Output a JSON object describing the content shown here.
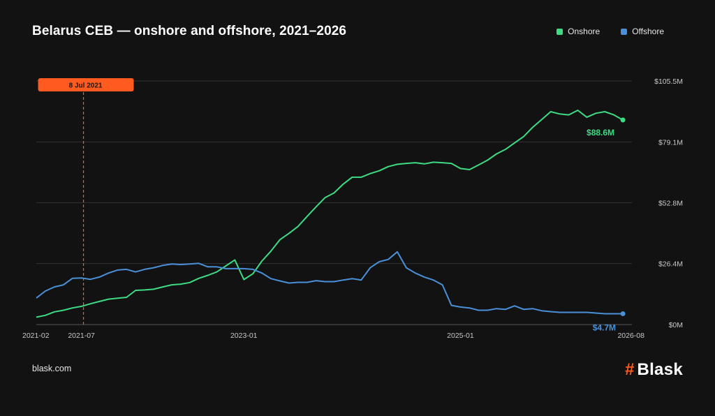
{
  "header": {
    "title": "Belarus CEB — onshore and offshore, 2021–2026"
  },
  "legend": [
    {
      "label": "Onshore",
      "color": "#3ddc84"
    },
    {
      "label": "Offshore",
      "color": "#4a90d9"
    }
  ],
  "footer": {
    "source": "blask.com",
    "brand_mark": "#",
    "brand_name": "Blask"
  },
  "colors": {
    "accent": "#ff5a1f",
    "onshore": "#3ddc84",
    "offshore": "#4a90d9",
    "grid": "#3a3a3a"
  },
  "chart_data": {
    "type": "line",
    "x_axis": {
      "ticks": [
        "2021-02",
        "2021-07",
        "2023-01",
        "2025-01",
        "2026-08"
      ],
      "range": [
        "2021-02",
        "2026-08"
      ]
    },
    "y_axis": {
      "ticks": [
        "$0M",
        "$26.4M",
        "$52.8M",
        "$79.1M",
        "$105.5M"
      ],
      "ylim": [
        0,
        105.5
      ],
      "position": "right"
    },
    "grid": true,
    "legend_position": "top-right",
    "event_marker": {
      "x": "2021-07-08",
      "label": "8 Jul 2021"
    },
    "series": [
      {
        "name": "Onshore",
        "end_label": "$88.6M",
        "points": [
          [
            "2021-02",
            3.2
          ],
          [
            "2021-03",
            4.0
          ],
          [
            "2021-04",
            5.5
          ],
          [
            "2021-05",
            6.2
          ],
          [
            "2021-06",
            7.2
          ],
          [
            "2021-07",
            7.9
          ],
          [
            "2021-08",
            9.0
          ],
          [
            "2021-09",
            10.0
          ],
          [
            "2021-10",
            11.0
          ],
          [
            "2021-11",
            11.4
          ],
          [
            "2021-12",
            11.8
          ],
          [
            "2022-01",
            14.8
          ],
          [
            "2022-02",
            15.0
          ],
          [
            "2022-03",
            15.3
          ],
          [
            "2022-04",
            16.3
          ],
          [
            "2022-05",
            17.2
          ],
          [
            "2022-06",
            17.5
          ],
          [
            "2022-07",
            18.2
          ],
          [
            "2022-08",
            20.0
          ],
          [
            "2022-09",
            21.3
          ],
          [
            "2022-10",
            22.8
          ],
          [
            "2022-11",
            25.4
          ],
          [
            "2022-12",
            28.0
          ],
          [
            "2023-01",
            19.5
          ],
          [
            "2023-02",
            22.0
          ],
          [
            "2023-03",
            27.5
          ],
          [
            "2023-04",
            31.8
          ],
          [
            "2023-05",
            36.8
          ],
          [
            "2023-06",
            39.5
          ],
          [
            "2023-07",
            42.5
          ],
          [
            "2023-08",
            46.8
          ],
          [
            "2023-09",
            51.0
          ],
          [
            "2023-10",
            55.0
          ],
          [
            "2023-11",
            57.0
          ],
          [
            "2023-12",
            60.8
          ],
          [
            "2024-01",
            63.8
          ],
          [
            "2024-02",
            63.8
          ],
          [
            "2024-03",
            65.4
          ],
          [
            "2024-04",
            66.6
          ],
          [
            "2024-05",
            68.4
          ],
          [
            "2024-06",
            69.4
          ],
          [
            "2024-07",
            69.8
          ],
          [
            "2024-08",
            70.1
          ],
          [
            "2024-09",
            69.6
          ],
          [
            "2024-10",
            70.3
          ],
          [
            "2024-11",
            70.1
          ],
          [
            "2024-12",
            69.8
          ],
          [
            "2025-01",
            67.6
          ],
          [
            "2025-02",
            67.1
          ],
          [
            "2025-03",
            69.1
          ],
          [
            "2025-04",
            71.2
          ],
          [
            "2025-05",
            73.9
          ],
          [
            "2025-06",
            75.9
          ],
          [
            "2025-07",
            78.7
          ],
          [
            "2025-08",
            81.4
          ],
          [
            "2025-09",
            85.4
          ],
          [
            "2025-10",
            88.8
          ],
          [
            "2025-11",
            92.2
          ],
          [
            "2025-12",
            91.2
          ],
          [
            "2026-01",
            90.8
          ],
          [
            "2026-02",
            92.8
          ],
          [
            "2026-03",
            89.8
          ],
          [
            "2026-04",
            91.5
          ],
          [
            "2026-05",
            92.2
          ],
          [
            "2026-06",
            90.8
          ],
          [
            "2026-07",
            88.6
          ]
        ]
      },
      {
        "name": "Offshore",
        "end_label": "$4.7M",
        "points": [
          [
            "2021-02",
            11.5
          ],
          [
            "2021-03",
            14.5
          ],
          [
            "2021-04",
            16.3
          ],
          [
            "2021-05",
            17.2
          ],
          [
            "2021-06",
            20.0
          ],
          [
            "2021-07",
            20.2
          ],
          [
            "2021-08",
            19.6
          ],
          [
            "2021-09",
            20.6
          ],
          [
            "2021-10",
            22.3
          ],
          [
            "2021-11",
            23.6
          ],
          [
            "2021-12",
            23.9
          ],
          [
            "2022-01",
            22.8
          ],
          [
            "2022-02",
            23.9
          ],
          [
            "2022-03",
            24.6
          ],
          [
            "2022-04",
            25.6
          ],
          [
            "2022-05",
            26.2
          ],
          [
            "2022-06",
            26.0
          ],
          [
            "2022-07",
            26.2
          ],
          [
            "2022-08",
            26.5
          ],
          [
            "2022-09",
            25.0
          ],
          [
            "2022-10",
            25.0
          ],
          [
            "2022-11",
            24.2
          ],
          [
            "2022-12",
            24.2
          ],
          [
            "2023-01",
            24.2
          ],
          [
            "2023-02",
            23.9
          ],
          [
            "2023-03",
            22.3
          ],
          [
            "2023-04",
            19.9
          ],
          [
            "2023-05",
            18.9
          ],
          [
            "2023-06",
            18.0
          ],
          [
            "2023-07",
            18.3
          ],
          [
            "2023-08",
            18.3
          ],
          [
            "2023-09",
            19.0
          ],
          [
            "2023-10",
            18.6
          ],
          [
            "2023-11",
            18.6
          ],
          [
            "2023-12",
            19.3
          ],
          [
            "2024-01",
            19.9
          ],
          [
            "2024-02",
            19.3
          ],
          [
            "2024-03",
            24.6
          ],
          [
            "2024-04",
            27.2
          ],
          [
            "2024-05",
            28.2
          ],
          [
            "2024-06",
            31.5
          ],
          [
            "2024-07",
            24.6
          ],
          [
            "2024-08",
            22.3
          ],
          [
            "2024-09",
            20.6
          ],
          [
            "2024-10",
            19.3
          ],
          [
            "2024-11",
            17.2
          ],
          [
            "2024-12",
            8.3
          ],
          [
            "2025-01",
            7.6
          ],
          [
            "2025-02",
            7.2
          ],
          [
            "2025-03",
            6.2
          ],
          [
            "2025-04",
            6.2
          ],
          [
            "2025-05",
            6.9
          ],
          [
            "2025-06",
            6.6
          ],
          [
            "2025-07",
            8.1
          ],
          [
            "2025-08",
            6.6
          ],
          [
            "2025-09",
            6.9
          ],
          [
            "2025-10",
            6.0
          ],
          [
            "2025-11",
            5.6
          ],
          [
            "2025-12",
            5.3
          ],
          [
            "2026-01",
            5.3
          ],
          [
            "2026-02",
            5.3
          ],
          [
            "2026-03",
            5.3
          ],
          [
            "2026-04",
            5.0
          ],
          [
            "2026-05",
            4.7
          ],
          [
            "2026-06",
            4.7
          ],
          [
            "2026-07",
            4.7
          ]
        ]
      }
    ]
  }
}
